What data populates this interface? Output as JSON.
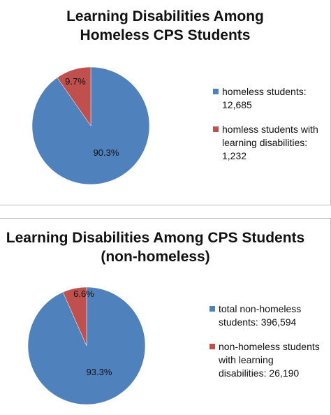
{
  "chart_data": [
    {
      "type": "pie",
      "title_lines": [
        "Learning Disabilities Among",
        "Homeless CPS Students"
      ],
      "slices": [
        {
          "legend": [
            "homeless students:",
            "12,685"
          ],
          "value": 90.3,
          "label": "90.3%",
          "color": "#4F81BD"
        },
        {
          "legend": [
            "homless students with",
            "learning disabilities:",
            "1,232"
          ],
          "value": 9.7,
          "label": "9.7%",
          "color": "#C0504D"
        }
      ],
      "legend_position": "right"
    },
    {
      "type": "pie",
      "title_lines": [
        "Learning Disabilities Among CPS Students",
        "(non-homeless)"
      ],
      "slices": [
        {
          "legend": [
            "total non-homeless",
            "students: 396,594"
          ],
          "value": 93.3,
          "label": "93.3%",
          "color": "#4F81BD"
        },
        {
          "legend": [
            "non-homeless students",
            "with learning",
            "disabilities: 26,190"
          ],
          "value": 6.6,
          "label": "6.6%",
          "color": "#C0504D"
        }
      ],
      "legend_position": "right"
    }
  ]
}
